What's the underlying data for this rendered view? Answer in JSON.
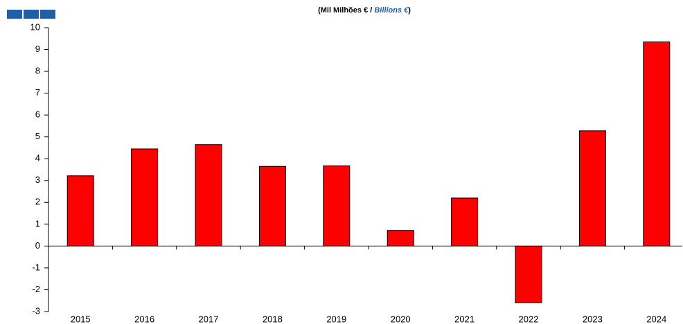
{
  "chart_data": {
    "type": "bar",
    "title_parts": [
      "(Mil Milhões  € / ",
      "Billions €",
      ")"
    ],
    "categories": [
      "2015",
      "2016",
      "2017",
      "2018",
      "2019",
      "2020",
      "2021",
      "2022",
      "2023",
      "2024"
    ],
    "values": [
      3.22,
      4.45,
      4.65,
      3.65,
      3.67,
      0.72,
      2.2,
      -2.6,
      5.28,
      9.35
    ],
    "color": "#ff0000",
    "ylim": [
      -3,
      10
    ],
    "yticks": [
      -3,
      -2,
      -1,
      0,
      1,
      2,
      3,
      4,
      5,
      6,
      7,
      8,
      9,
      10
    ],
    "grid": false
  }
}
